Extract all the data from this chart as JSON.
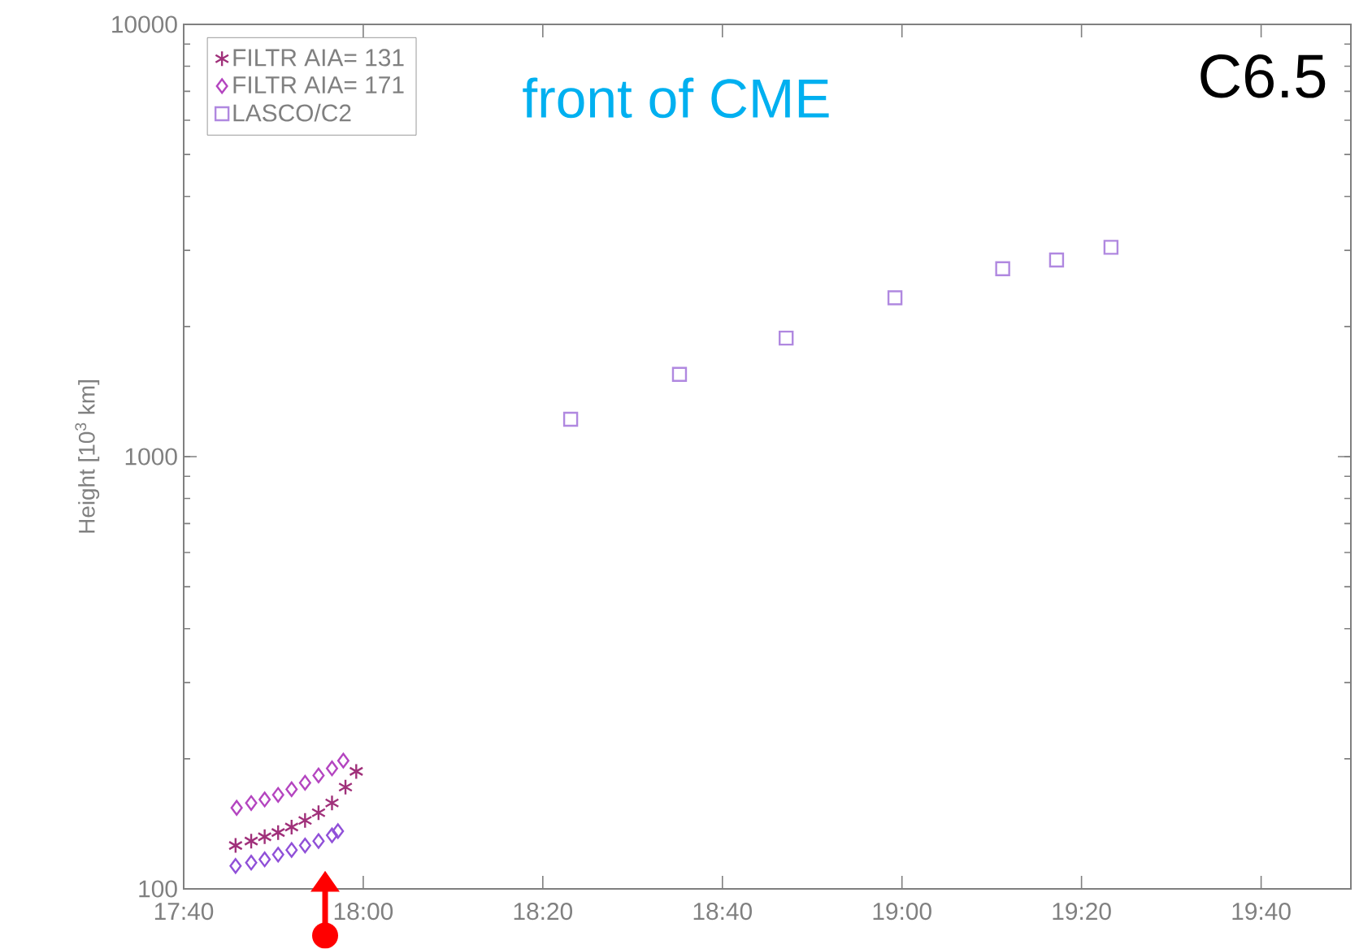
{
  "chart_data": {
    "type": "scatter",
    "ylabel": "Height [10$^{3}$ km]",
    "annotations": [
      "front of CME",
      "C6.5"
    ],
    "xlim": [
      17.6667,
      19.8333
    ],
    "xticks": [
      {
        "value": 17.6667,
        "label": "17:40"
      },
      {
        "value": 18.0,
        "label": "18:00"
      },
      {
        "value": 18.3333,
        "label": "18:20"
      },
      {
        "value": 18.6667,
        "label": "18:40"
      },
      {
        "value": 19.0,
        "label": "19:00"
      },
      {
        "value": 19.3333,
        "label": "19:20"
      },
      {
        "value": 19.6667,
        "label": "19:40"
      }
    ],
    "ylim": [
      100,
      10000
    ],
    "yticks": [
      100,
      1000,
      10000
    ],
    "log": "y",
    "grid": false,
    "legend": "top left",
    "series": [
      {
        "name": "FILTR AIA= 131",
        "color": "#a0307a",
        "marker": "cross",
        "x": [
          17.763,
          17.792,
          17.817,
          17.842,
          17.867,
          17.892,
          17.917,
          17.942,
          17.967,
          17.987
        ],
        "values": [
          126,
          129,
          132,
          135,
          139,
          144,
          150,
          158,
          172,
          187
        ]
      },
      {
        "name": "FILTR AIA= 171",
        "color": "#b445c0",
        "marker": "diamond",
        "x": [
          17.765,
          17.792,
          17.817,
          17.842,
          17.867,
          17.892,
          17.917,
          17.942,
          17.963
        ],
        "values": [
          154,
          158,
          161,
          165,
          170,
          176,
          183,
          190,
          198
        ]
      },
      {
        "color": "#9050d8",
        "marker": "diamond",
        "x": [
          17.763,
          17.792,
          17.817,
          17.842,
          17.867,
          17.892,
          17.917,
          17.942,
          17.953
        ],
        "values": [
          113,
          115,
          117,
          120,
          123,
          126,
          129,
          133,
          136
        ]
      },
      {
        "name": "LASCO/C2",
        "color": "#b088e0",
        "marker": "square",
        "x": [
          18.385,
          18.587,
          18.785,
          18.987,
          19.187,
          19.287,
          19.388
        ],
        "values": [
          1220,
          1550,
          1880,
          2330,
          2720,
          2850,
          3050
        ]
      }
    ]
  }
}
